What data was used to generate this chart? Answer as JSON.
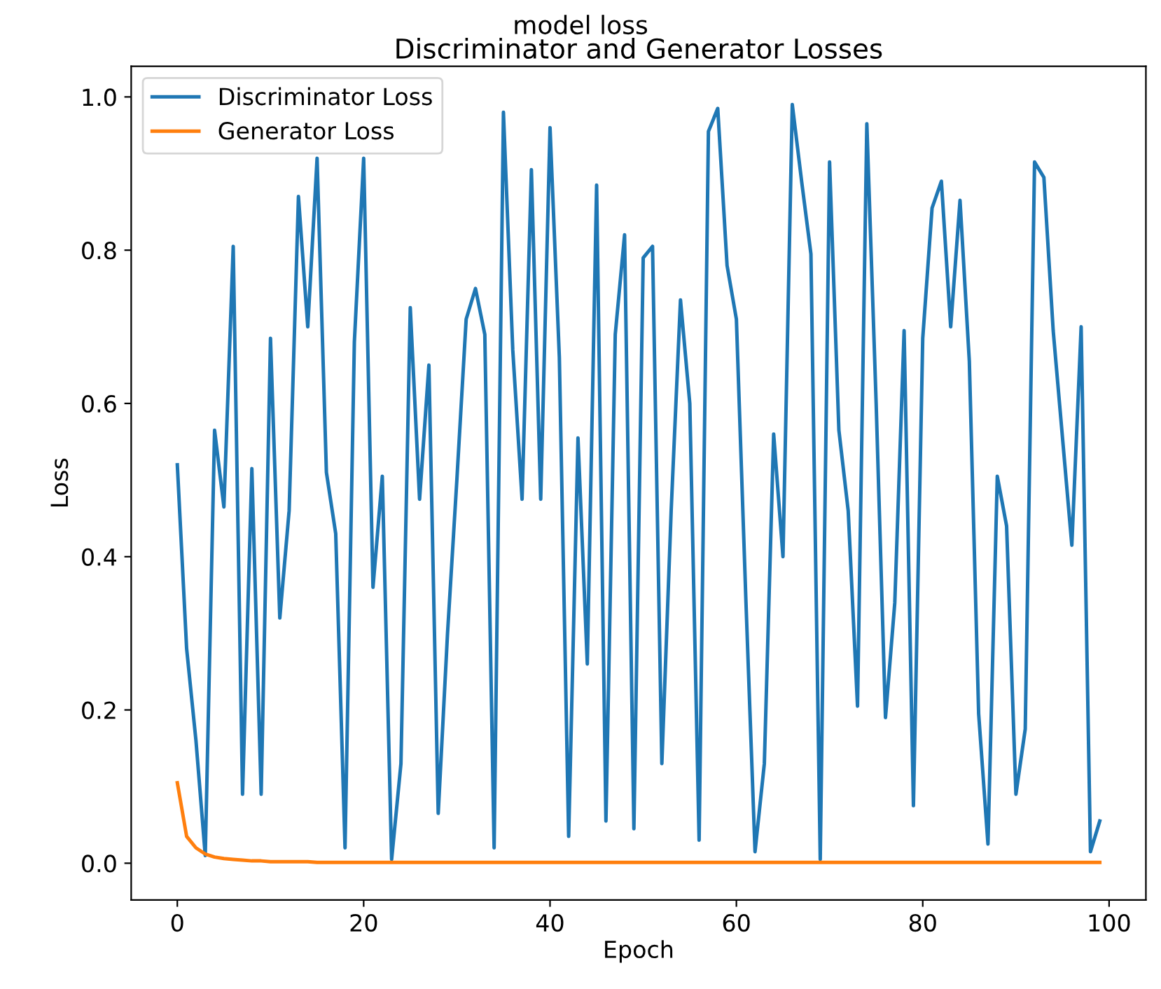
{
  "chart_data": {
    "type": "line",
    "title": "model loss",
    "subtitle": "Discriminator and Generator Losses",
    "xlabel": "Epoch",
    "ylabel": "Loss",
    "x": [
      0,
      1,
      2,
      3,
      4,
      5,
      6,
      7,
      8,
      9,
      10,
      11,
      12,
      13,
      14,
      15,
      16,
      17,
      18,
      19,
      20,
      21,
      22,
      23,
      24,
      25,
      26,
      27,
      28,
      29,
      30,
      31,
      32,
      33,
      34,
      35,
      36,
      37,
      38,
      39,
      40,
      41,
      42,
      43,
      44,
      45,
      46,
      47,
      48,
      49,
      50,
      51,
      52,
      53,
      54,
      55,
      56,
      57,
      58,
      59,
      60,
      61,
      62,
      63,
      64,
      65,
      66,
      67,
      68,
      69,
      70,
      71,
      72,
      73,
      74,
      75,
      76,
      77,
      78,
      79,
      80,
      81,
      82,
      83,
      84,
      85,
      86,
      87,
      88,
      89,
      90,
      91,
      92,
      93,
      94,
      95,
      96,
      97,
      98,
      99
    ],
    "series": [
      {
        "name": "Discriminator Loss",
        "color": "#1f77b4",
        "values": [
          0.52,
          0.28,
          0.16,
          0.01,
          0.565,
          0.465,
          0.805,
          0.09,
          0.515,
          0.09,
          0.685,
          0.32,
          0.46,
          0.87,
          0.7,
          0.92,
          0.51,
          0.43,
          0.02,
          0.68,
          0.92,
          0.36,
          0.505,
          0.005,
          0.13,
          0.725,
          0.475,
          0.65,
          0.065,
          0.3,
          0.5,
          0.71,
          0.75,
          0.69,
          0.02,
          0.98,
          0.67,
          0.475,
          0.905,
          0.475,
          0.96,
          0.66,
          0.035,
          0.555,
          0.26,
          0.885,
          0.055,
          0.69,
          0.82,
          0.045,
          0.79,
          0.805,
          0.13,
          0.46,
          0.735,
          0.6,
          0.03,
          0.955,
          0.985,
          0.78,
          0.71,
          0.35,
          0.015,
          0.13,
          0.56,
          0.4,
          0.99,
          0.89,
          0.795,
          0.005,
          0.915,
          0.565,
          0.46,
          0.205,
          0.965,
          0.6,
          0.19,
          0.34,
          0.695,
          0.075,
          0.685,
          0.855,
          0.89,
          0.7,
          0.865,
          0.655,
          0.195,
          0.025,
          0.505,
          0.44,
          0.09,
          0.175,
          0.915,
          0.895,
          0.695,
          0.555,
          0.415,
          0.7,
          0.015,
          0.055
        ]
      },
      {
        "name": "Generator Loss",
        "color": "#ff7f0e",
        "values": [
          0.105,
          0.035,
          0.02,
          0.012,
          0.008,
          0.006,
          0.005,
          0.004,
          0.003,
          0.003,
          0.002,
          0.002,
          0.002,
          0.002,
          0.002,
          0.001,
          0.001,
          0.001,
          0.001,
          0.001,
          0.001,
          0.001,
          0.001,
          0.001,
          0.001,
          0.001,
          0.001,
          0.001,
          0.001,
          0.001,
          0.001,
          0.001,
          0.001,
          0.001,
          0.001,
          0.001,
          0.001,
          0.001,
          0.001,
          0.001,
          0.001,
          0.001,
          0.001,
          0.001,
          0.001,
          0.001,
          0.001,
          0.001,
          0.001,
          0.001,
          0.001,
          0.001,
          0.001,
          0.001,
          0.001,
          0.001,
          0.001,
          0.001,
          0.001,
          0.001,
          0.001,
          0.001,
          0.001,
          0.001,
          0.001,
          0.001,
          0.001,
          0.001,
          0.001,
          0.001,
          0.001,
          0.001,
          0.001,
          0.001,
          0.001,
          0.001,
          0.001,
          0.001,
          0.001,
          0.001,
          0.001,
          0.001,
          0.001,
          0.001,
          0.001,
          0.001,
          0.001,
          0.001,
          0.001,
          0.001,
          0.001,
          0.001,
          0.001,
          0.001,
          0.001,
          0.001,
          0.001,
          0.001,
          0.001,
          0.001
        ]
      }
    ],
    "xlim": [
      -4.95,
      103.95
    ],
    "ylim": [
      -0.048,
      1.04
    ],
    "xticks": [
      0,
      20,
      40,
      60,
      80,
      100
    ],
    "yticks": [
      {
        "value": 0,
        "label": "0.0"
      },
      {
        "value": 0.2,
        "label": "0.2"
      },
      {
        "value": 0.4,
        "label": "0.4"
      },
      {
        "value": 0.6,
        "label": "0.6"
      },
      {
        "value": 0.8,
        "label": "0.8"
      },
      {
        "value": 1.0,
        "label": "1.0"
      }
    ],
    "legend": "top left",
    "grid": false
  }
}
